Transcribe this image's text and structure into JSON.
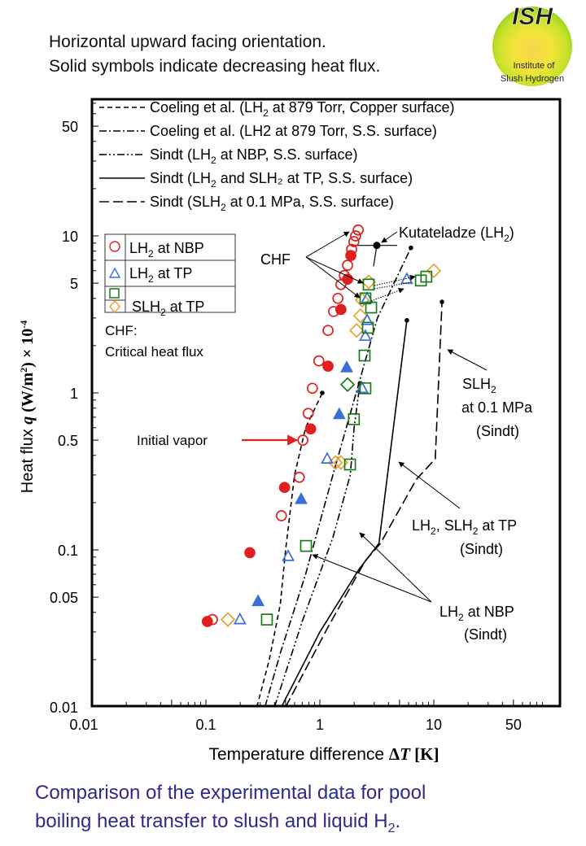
{
  "header": {
    "line1": "Horizontal upward facing orientation.",
    "line2": "Solid symbols indicate decreasing heat flux."
  },
  "logo": {
    "title": "ISH",
    "line1": "Institute of",
    "line2": "Slush Hydrogen"
  },
  "caption": {
    "line1": "Comparison of the experimental  data for pool",
    "line2_main": "boiling heat transfer to slush and liquid H",
    "line2_sub": "2",
    "line2_end": "."
  },
  "colors": {
    "lh2_nbp": "#e02020",
    "lh2_tp": "#3b6fd8",
    "slh2_square": "#1a7a1a",
    "slh2_diamond": "#e8a030",
    "caption": "#2b2b8c",
    "initial_vapor_arrow": "#e02020"
  },
  "chart_data": {
    "type": "scatter",
    "title": "",
    "xlabel": "Temperature difference ΔT [K]",
    "ylabel": "Heat flux q (W/m²) × 10⁻⁴",
    "xscale": "log",
    "yscale": "log",
    "xlim": [
      0.01,
      100
    ],
    "ylim": [
      0.01,
      100
    ],
    "xticks": [
      {
        "value": 0.01,
        "label": "0.01"
      },
      {
        "value": 0.1,
        "label": "0.1"
      },
      {
        "value": 1,
        "label": "1"
      },
      {
        "value": 10,
        "label": "10"
      },
      {
        "value": 50,
        "label": "50"
      }
    ],
    "yticks": [
      {
        "value": 0.01,
        "label": "0.01"
      },
      {
        "value": 0.05,
        "label": "0.05"
      },
      {
        "value": 0.1,
        "label": "0.1"
      },
      {
        "value": 0.5,
        "label": "0.5"
      },
      {
        "value": 1,
        "label": "1"
      },
      {
        "value": 5,
        "label": "5"
      },
      {
        "value": 10,
        "label": "10"
      },
      {
        "value": 50,
        "label": "50"
      }
    ],
    "grid": false,
    "line_legend": [
      {
        "style": "dashed",
        "text": "Coeling et al. (LH",
        "sub": "2",
        "rest": " at 879 Torr, Copper surface)"
      },
      {
        "style": "dashdot",
        "text": "Coeling et al. (LH2 at 879 Torr, S.S. surface)",
        "sub": "",
        "rest": ""
      },
      {
        "style": "dashdotdot",
        "text": "Sindt (LH",
        "sub": "2",
        "rest": " at NBP, S.S. surface)"
      },
      {
        "style": "solid",
        "text": "Sindt (LH",
        "sub": "2",
        "rest": " and SLH₂ at TP, S.S. surface)"
      },
      {
        "style": "longdash",
        "text": "Sindt (SLH",
        "sub": "2",
        "rest": " at 0.1 MPa, S.S. surface)"
      }
    ],
    "marker_legend": [
      {
        "marker": "circle",
        "color": "#e02020",
        "text": "LH",
        "sub": "2",
        "rest": " at NBP"
      },
      {
        "marker": "triangle",
        "color": "#3b6fd8",
        "text": "LH",
        "sub": "2",
        "rest": " at TP"
      },
      {
        "marker": "square",
        "color": "#1a7a1a",
        "text": "SLH",
        "sub": "2",
        "rest": " at TP"
      },
      {
        "marker": "diamond",
        "color": "#e8a030",
        "text": "",
        "sub": "",
        "rest": ""
      }
    ],
    "chf_note": {
      "line1": "CHF:",
      "line2": "Critical heat flux"
    },
    "series": [
      {
        "name": "LH2 at NBP (increasing)",
        "marker": "circle",
        "filled": false,
        "color": "#e02020",
        "points": [
          [
            0.114,
            0.036
          ],
          [
            0.46,
            0.165
          ],
          [
            0.66,
            0.29
          ],
          [
            0.71,
            0.5
          ],
          [
            0.79,
            0.74
          ],
          [
            0.86,
            1.07
          ],
          [
            0.98,
            1.6
          ],
          [
            1.18,
            2.5
          ],
          [
            1.32,
            3.3
          ],
          [
            1.44,
            4.0
          ],
          [
            1.53,
            4.9
          ],
          [
            1.64,
            5.6
          ],
          [
            1.75,
            6.5
          ],
          [
            1.9,
            8.2
          ],
          [
            1.99,
            9.2
          ],
          [
            2.06,
            10.0
          ],
          [
            2.17,
            10.9
          ]
        ]
      },
      {
        "name": "LH2 at NBP (decreasing)",
        "marker": "circle",
        "filled": true,
        "color": "#e02020",
        "points": [
          [
            0.103,
            0.035
          ],
          [
            0.243,
            0.096
          ],
          [
            0.49,
            0.25
          ],
          [
            0.83,
            0.59
          ],
          [
            1.18,
            1.48
          ],
          [
            1.53,
            3.4
          ],
          [
            1.75,
            5.3
          ],
          [
            1.87,
            7.5
          ]
        ]
      },
      {
        "name": "LH2 at TP (increasing)",
        "marker": "triangle",
        "filled": false,
        "color": "#3b6fd8",
        "points": [
          [
            0.199,
            0.036
          ],
          [
            0.527,
            0.091
          ],
          [
            1.16,
            0.38
          ],
          [
            2.35,
            1.07
          ],
          [
            2.51,
            2.3
          ],
          [
            2.6,
            2.9
          ],
          [
            2.6,
            4.0
          ],
          [
            5.8,
            5.3
          ]
        ]
      },
      {
        "name": "LH2 at TP (decreasing)",
        "marker": "triangle",
        "filled": true,
        "color": "#3b6fd8",
        "points": [
          [
            0.287,
            0.047
          ],
          [
            0.685,
            0.21
          ],
          [
            1.48,
            0.73
          ],
          [
            1.72,
            1.45
          ]
        ]
      },
      {
        "name": "SLH2 at TP (square)",
        "marker": "square",
        "filled": false,
        "color": "#1a7a1a",
        "points": [
          [
            0.343,
            0.036
          ],
          [
            0.756,
            0.106
          ],
          [
            1.84,
            0.35
          ],
          [
            1.99,
            0.68
          ],
          [
            2.51,
            1.07
          ],
          [
            2.47,
            1.73
          ],
          [
            2.64,
            2.6
          ],
          [
            2.82,
            3.5
          ],
          [
            2.51,
            4.0
          ],
          [
            2.68,
            4.9
          ],
          [
            7.7,
            5.2
          ],
          [
            8.6,
            5.5
          ]
        ]
      },
      {
        "name": "SLH2 at TP (diamond)",
        "marker": "diamond",
        "filled": false,
        "color": "#e8a030",
        "points": [
          [
            0.156,
            0.036
          ],
          [
            1.37,
            0.36
          ],
          [
            1.53,
            0.36
          ],
          [
            2.1,
            2.5
          ],
          [
            2.27,
            3.1
          ],
          [
            2.35,
            3.9
          ],
          [
            2.68,
            5.1
          ],
          [
            10.0,
            6.0
          ]
        ]
      },
      {
        "name": "SLH2 at TP (diamond, decreasing)",
        "marker": "diamond",
        "filled": false,
        "color": "#1a7a1a",
        "points": [
          [
            1.75,
            1.13
          ]
        ]
      }
    ],
    "curves": [
      {
        "name": "Coeling Cu",
        "style": "dashed",
        "points": [
          [
            0.28,
            0.01
          ],
          [
            0.36,
            0.02
          ],
          [
            0.45,
            0.045
          ],
          [
            0.5,
            0.1
          ],
          [
            0.6,
            0.3
          ],
          [
            0.75,
            0.6
          ],
          [
            1.05,
            1.0
          ]
        ]
      },
      {
        "name": "Coeling SS",
        "style": "dashdot",
        "points": [
          [
            0.33,
            0.01
          ],
          [
            0.45,
            0.022
          ],
          [
            0.75,
            0.07
          ],
          [
            1.3,
            0.3
          ],
          [
            2.0,
            0.9
          ],
          [
            3.2,
            3.0
          ],
          [
            6.3,
            8.4
          ]
        ]
      },
      {
        "name": "Sindt LH2 NBP",
        "style": "dashdotdot",
        "points": [
          [
            0.4,
            0.01
          ],
          [
            0.7,
            0.035
          ],
          [
            1.3,
            0.12
          ],
          [
            1.85,
            0.3
          ],
          [
            2.0,
            0.6
          ],
          [
            2.25,
            1.15
          ]
        ]
      },
      {
        "name": "Sindt LH2/SLH2 TP",
        "style": "solid",
        "points": [
          [
            0.46,
            0.01
          ],
          [
            1.0,
            0.03
          ],
          [
            2.2,
            0.075
          ],
          [
            3.3,
            0.11
          ],
          [
            5.8,
            2.9
          ]
        ]
      },
      {
        "name": "Sindt SLH2 0.1 MPa",
        "style": "longdash",
        "points": [
          [
            0.5,
            0.01
          ],
          [
            1.2,
            0.033
          ],
          [
            2.5,
            0.085
          ],
          [
            3.4,
            0.11
          ],
          [
            7.0,
            0.28
          ],
          [
            10.3,
            0.38
          ],
          [
            11.8,
            3.8
          ]
        ]
      }
    ],
    "kutateladze": {
      "label": "Kutateladze (LH",
      "sub": "2",
      "rest": ")",
      "point": [
        3.16,
        8.7
      ],
      "xerr": [
        1.93,
        4.77
      ],
      "ylow": 6.4
    },
    "annotations": [
      {
        "text": "CHF",
        "targets": [
          [
            2.17,
            10.9
          ],
          [
            2.68,
            4.9
          ],
          [
            2.51,
            4.0
          ]
        ]
      },
      {
        "text": "Initial vapor",
        "target": [
          0.71,
          0.5
        ]
      },
      {
        "text": "SLH₂",
        "line2": "at 0.1 MPa",
        "line3": "(Sindt)"
      },
      {
        "text": "LH₂, SLH₂ at TP",
        "line2": "(Sindt)"
      },
      {
        "text": "LH₂ at NBP",
        "line2": "(Sindt)"
      }
    ]
  }
}
